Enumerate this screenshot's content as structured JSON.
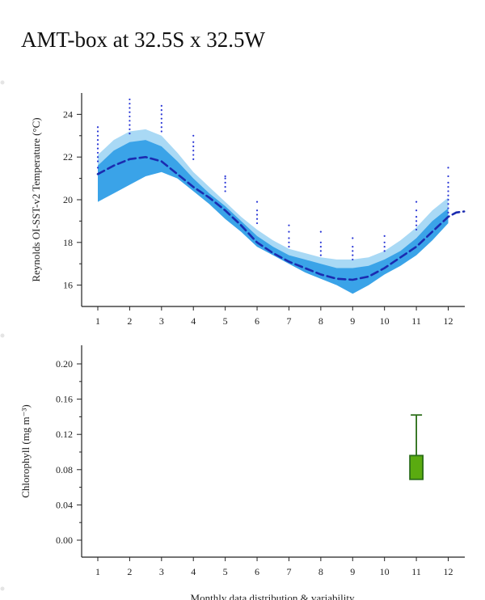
{
  "page": {
    "title": "AMT-box at 32.5S x 32.5W",
    "footer_text": "Monthly data distribution & variability"
  },
  "colors": {
    "sst_outer_band": "#a9d9f5",
    "sst_inner_band": "#3aa3e8",
    "sst_mean_line": "#1b2bb0",
    "sst_points": "#2a37d6",
    "chl_box_fill": "#5aab10",
    "chl_box_stroke": "#2b6e18",
    "axis": "#222222"
  },
  "chart_data": [
    {
      "type": "line",
      "ylabel": "Reynolds OI-SST-v2 Temperature (°C)",
      "xlim": [
        0.5,
        12.5
      ],
      "ylim": [
        15,
        25
      ],
      "x_ticks": [
        1,
        2,
        3,
        4,
        5,
        6,
        7,
        8,
        9,
        10,
        11,
        12
      ],
      "y_ticks": [
        16,
        18,
        20,
        22,
        24
      ],
      "series": [
        {
          "role": "mean",
          "style": "dashed",
          "x": [
            1,
            1.5,
            2,
            2.5,
            3,
            3.5,
            4,
            4.5,
            5,
            5.5,
            6,
            6.5,
            7,
            7.5,
            8,
            8.5,
            9,
            9.5,
            10,
            10.5,
            11,
            11.5,
            12,
            12.25,
            12.5
          ],
          "values": [
            21.2,
            21.6,
            21.9,
            22.0,
            21.8,
            21.2,
            20.6,
            20.1,
            19.5,
            18.8,
            18.0,
            17.5,
            17.1,
            16.8,
            16.5,
            16.3,
            16.25,
            16.4,
            16.8,
            17.3,
            17.8,
            18.5,
            19.2,
            19.4,
            19.45
          ]
        },
        {
          "role": "inner-range",
          "x": [
            1,
            1.5,
            2,
            2.5,
            3,
            3.5,
            4,
            4.5,
            5,
            5.5,
            6,
            6.5,
            7,
            7.5,
            8,
            8.5,
            9,
            9.5,
            10,
            10.5,
            11,
            11.5,
            12
          ],
          "upper": [
            21.6,
            22.3,
            22.7,
            22.8,
            22.5,
            21.8,
            21.0,
            20.3,
            19.7,
            19.0,
            18.3,
            17.8,
            17.4,
            17.2,
            17.0,
            16.8,
            16.8,
            16.9,
            17.2,
            17.6,
            18.2,
            19.0,
            19.6
          ],
          "lower": [
            19.9,
            20.3,
            20.7,
            21.1,
            21.3,
            21.0,
            20.4,
            19.8,
            19.1,
            18.5,
            17.8,
            17.4,
            17.0,
            16.6,
            16.3,
            16.0,
            15.6,
            16.0,
            16.5,
            16.9,
            17.4,
            18.1,
            18.9
          ]
        },
        {
          "role": "outer-range",
          "x": [
            1,
            1.5,
            2,
            2.5,
            3,
            3.5,
            4,
            4.5,
            5,
            5.5,
            6,
            6.5,
            7,
            7.5,
            8,
            8.5,
            9,
            9.5,
            10,
            10.5,
            11,
            11.5,
            12
          ],
          "upper": [
            22.1,
            22.8,
            23.2,
            23.3,
            23.0,
            22.2,
            21.3,
            20.6,
            19.9,
            19.2,
            18.6,
            18.1,
            17.7,
            17.5,
            17.3,
            17.2,
            17.2,
            17.3,
            17.6,
            18.1,
            18.7,
            19.5,
            20.1
          ],
          "lower": [
            19.9,
            20.3,
            20.7,
            21.1,
            21.3,
            21.0,
            20.4,
            19.8,
            19.1,
            18.5,
            17.8,
            17.4,
            17.0,
            16.6,
            16.3,
            16.0,
            15.6,
            16.0,
            16.5,
            16.9,
            17.4,
            18.1,
            18.9
          ]
        },
        {
          "role": "monthly-observations",
          "points": [
            {
              "x": 1,
              "values": [
                21.2,
                21.5,
                21.8,
                22.0,
                22.2,
                22.4,
                22.6,
                22.8,
                23.0,
                23.2,
                23.4
              ]
            },
            {
              "x": 2,
              "values": [
                23.1,
                23.3,
                23.5,
                23.7,
                23.9,
                24.1,
                24.3,
                24.5,
                24.7
              ]
            },
            {
              "x": 3,
              "values": [
                23.2,
                23.4,
                23.6,
                23.8,
                24.0,
                24.2,
                24.4
              ]
            },
            {
              "x": 4,
              "values": [
                21.9,
                22.1,
                22.3,
                22.5,
                22.7,
                23.0
              ]
            },
            {
              "x": 5,
              "values": [
                20.4,
                20.6,
                20.8,
                21.0,
                21.1
              ]
            },
            {
              "x": 6,
              "values": [
                18.9,
                19.1,
                19.3,
                19.5,
                19.9
              ]
            },
            {
              "x": 7,
              "values": [
                17.8,
                18.0,
                18.2,
                18.5,
                18.8
              ]
            },
            {
              "x": 8,
              "values": [
                17.4,
                17.6,
                17.8,
                18.0,
                18.5
              ]
            },
            {
              "x": 9,
              "values": [
                17.2,
                17.4,
                17.6,
                17.8,
                18.2
              ]
            },
            {
              "x": 10,
              "values": [
                17.6,
                17.8,
                18.0,
                18.3
              ]
            },
            {
              "x": 11,
              "values": [
                18.6,
                18.8,
                19.0,
                19.2,
                19.5,
                19.9
              ]
            },
            {
              "x": 12,
              "values": [
                19.4,
                19.6,
                19.8,
                20.0,
                20.2,
                20.4,
                20.6,
                20.8,
                21.1,
                21.5
              ]
            }
          ]
        }
      ]
    },
    {
      "type": "box",
      "ylabel": "Chlorophyll (mg m⁻³)",
      "xlim": [
        0.5,
        12.5
      ],
      "ylim": [
        -0.02,
        0.22
      ],
      "x_ticks": [
        1,
        2,
        3,
        4,
        5,
        6,
        7,
        8,
        9,
        10,
        11,
        12
      ],
      "y_ticks": [
        "0.00",
        "0.04",
        "0.08",
        "0.12",
        "0.16",
        "0.20"
      ],
      "boxes": [
        {
          "x": 11,
          "q1": 0.069,
          "q3": 0.096,
          "whisker_high": 0.142
        }
      ]
    }
  ]
}
